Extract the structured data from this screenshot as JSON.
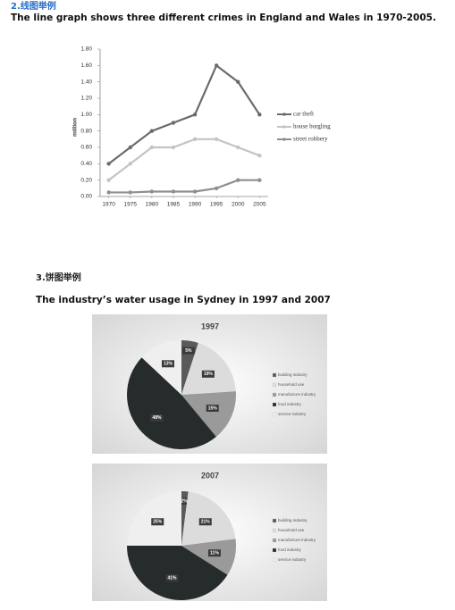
{
  "sections": [
    {
      "heading": "2.线图举例",
      "caption": "The line graph shows three different crimes in England and Wales in 1970-2005."
    },
    {
      "heading": "3.饼图举例",
      "caption": "The industry’s water usage in Sydney in 1997 and 2007"
    }
  ],
  "chart_data": [
    {
      "type": "line",
      "ylabel": "million",
      "x": [
        1970,
        1975,
        1980,
        1985,
        1990,
        1995,
        2000,
        2005
      ],
      "xlim": [
        1968,
        2007
      ],
      "xticks": [
        1970,
        1975,
        1980,
        1985,
        1990,
        1995,
        2000,
        2005
      ],
      "ylim": [
        0,
        1.8
      ],
      "yticks": [
        {
          "value": 0,
          "label": "0.00"
        },
        {
          "value": 0.2,
          "label": "0.20"
        },
        {
          "value": 0.4,
          "label": "0.40"
        },
        {
          "value": 0.6,
          "label": "0.60"
        },
        {
          "value": 0.8,
          "label": "0.80"
        },
        {
          "value": 1.0,
          "label": "1.00"
        },
        {
          "value": 1.2,
          "label": "1.20"
        },
        {
          "value": 1.4,
          "label": "1.40"
        },
        {
          "value": 1.6,
          "label": "1.60"
        },
        {
          "value": 1.8,
          "label": "1.80"
        }
      ],
      "legend": "right",
      "series": [
        {
          "name": "car theft",
          "color": "#6b6b6b",
          "values": [
            0.4,
            0.6,
            0.8,
            0.9,
            1.0,
            1.6,
            1.4,
            1.0
          ]
        },
        {
          "name": "house burgling",
          "color": "#c4c4c4",
          "values": [
            0.2,
            0.4,
            0.6,
            0.6,
            0.7,
            0.7,
            0.6,
            0.5
          ]
        },
        {
          "name": "street robbery",
          "color": "#8f8f8f",
          "values": [
            0.05,
            0.05,
            0.06,
            0.06,
            0.06,
            0.1,
            0.2,
            0.2
          ]
        }
      ]
    },
    {
      "type": "pie",
      "title": "1997",
      "categories": [
        "building industry",
        "household use",
        "manufacture industry",
        "food industry",
        "service industry"
      ],
      "colors": [
        "#5a5a5a",
        "#dcdcdc",
        "#9a9a9a",
        "#262c2c",
        "#efefef"
      ],
      "values": [
        5,
        19,
        15,
        48,
        13
      ],
      "value_labels": [
        "5%",
        "19%",
        "15%",
        "48%",
        "13%"
      ]
    },
    {
      "type": "pie",
      "title": "2007",
      "categories": [
        "building industry",
        "household use",
        "manufacture industry",
        "food industry",
        "service industry"
      ],
      "colors": [
        "#5a5a5a",
        "#dcdcdc",
        "#9a9a9a",
        "#262c2c",
        "#efefef"
      ],
      "values": [
        2,
        21,
        11,
        41,
        25
      ],
      "value_labels": [
        "2%",
        "21%",
        "11%",
        "41%",
        "25%"
      ]
    }
  ]
}
